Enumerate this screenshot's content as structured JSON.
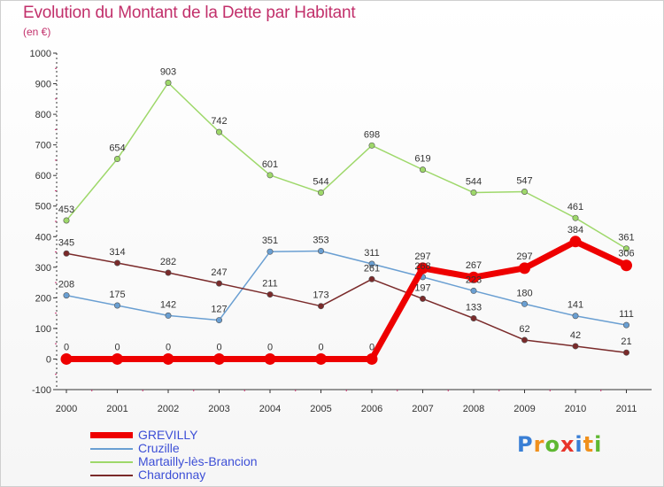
{
  "title": "Evolution du Montant de la Dette par Habitant",
  "subtitle": "(en €)",
  "logo": "Proxiti",
  "chart_data": {
    "type": "line",
    "title": "Evolution du Montant de la Dette par Habitant",
    "subtitle": "(en €)",
    "x": [
      "2000",
      "2001",
      "2002",
      "2003",
      "2004",
      "2005",
      "2006",
      "2007",
      "2008",
      "2009",
      "2010",
      "2011"
    ],
    "ylim": [
      -100,
      1000
    ],
    "yticks": [
      -100,
      0,
      100,
      200,
      300,
      400,
      500,
      600,
      700,
      800,
      900,
      1000
    ],
    "grid": false,
    "legend_position": "bottom-left",
    "series": [
      {
        "name": "GREVILLY",
        "color": "#ee0000",
        "values": [
          0,
          0,
          0,
          0,
          0,
          0,
          0,
          297,
          267,
          297,
          384,
          306
        ],
        "labels": [
          "0",
          "0",
          "0",
          "0",
          "0",
          "0",
          "0",
          "297",
          "267",
          "297",
          "384",
          "306"
        ]
      },
      {
        "name": "Cruzille",
        "color": "#6a9fd2",
        "values": [
          208,
          175,
          142,
          127,
          351,
          353,
          311,
          268,
          223,
          180,
          141,
          111
        ],
        "labels": [
          "208",
          "175",
          "142",
          "127",
          "351",
          "353",
          "311",
          "268",
          "223",
          "180",
          "141",
          "111"
        ]
      },
      {
        "name": "Martailly-lès-Brancion",
        "color": "#9ed86a",
        "values": [
          453,
          654,
          903,
          742,
          601,
          544,
          698,
          619,
          544,
          547,
          461,
          361
        ],
        "labels": [
          "453",
          "654",
          "903",
          "742",
          "601",
          "544",
          "698",
          "619",
          "544",
          "547",
          "461",
          "361"
        ]
      },
      {
        "name": "Chardonnay",
        "color": "#7a2a2a",
        "values": [
          345,
          314,
          282,
          247,
          211,
          173,
          261,
          197,
          133,
          62,
          42,
          21
        ],
        "labels": [
          "345",
          "314",
          "282",
          "247",
          "211",
          "173",
          "261",
          "197",
          "133",
          "62",
          "42",
          "21"
        ]
      }
    ]
  }
}
